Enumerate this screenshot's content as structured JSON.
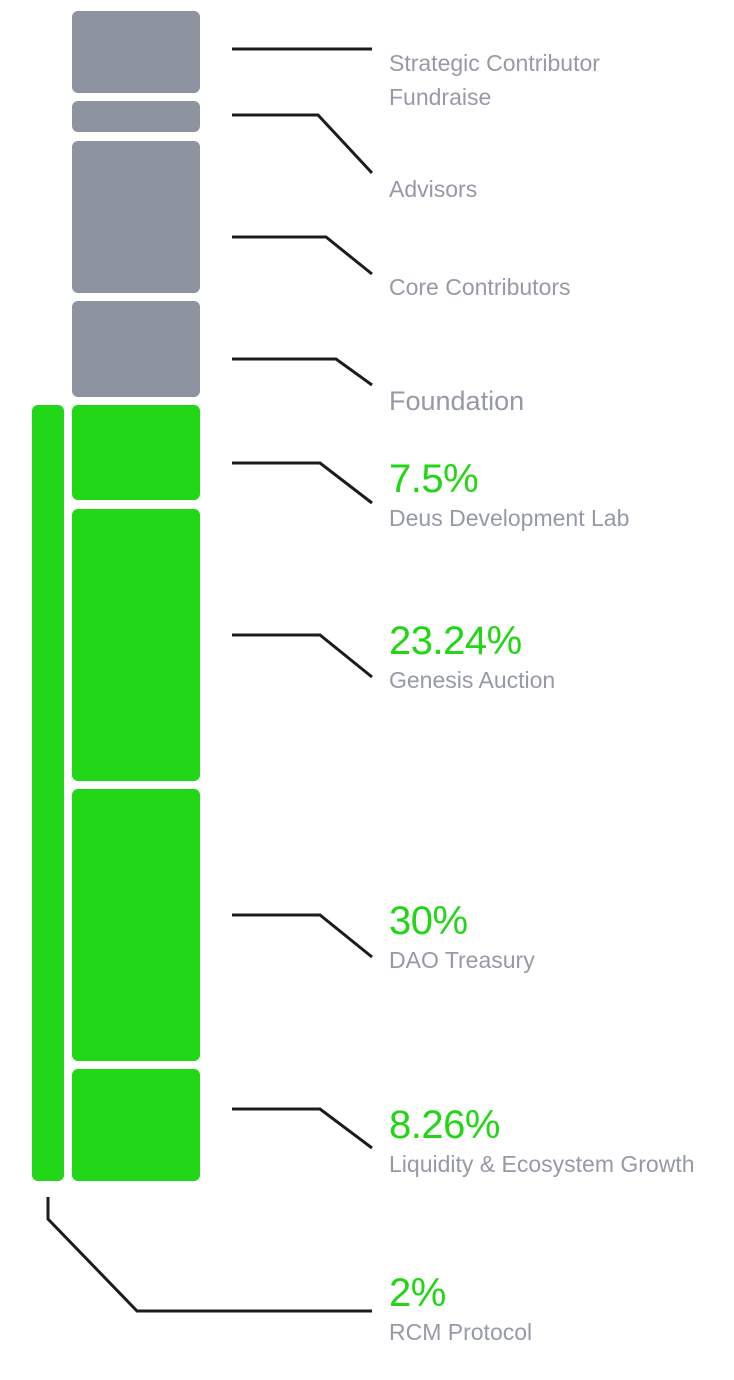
{
  "colors": {
    "locked": "#8e949f",
    "unlocked": "#21d717",
    "leader": "#1c1c1c",
    "label": "#969aa5",
    "percent": "#22d616"
  },
  "chart_data": {
    "type": "bar",
    "orientation": "vertical-stacked",
    "segments": [
      {
        "name": "Strategic Contributor Fundraise",
        "name_lines": [
          "Strategic Contributor",
          "Fundraise"
        ],
        "percent": null,
        "status": "locked"
      },
      {
        "name": "Advisors",
        "name_lines": [
          "Advisors"
        ],
        "percent": null,
        "status": "locked"
      },
      {
        "name": "Core Contributors",
        "name_lines": [
          "Core Contributors"
        ],
        "percent": null,
        "status": "locked"
      },
      {
        "name": "Foundation",
        "name_lines": [
          "Foundation"
        ],
        "percent": null,
        "status": "locked"
      },
      {
        "name": "Deus Development Lab",
        "name_lines": [
          "Deus Development Lab"
        ],
        "percent": "7.5%",
        "percent_value": 7.5,
        "status": "unlocked"
      },
      {
        "name": "Genesis Auction",
        "name_lines": [
          "Genesis Auction"
        ],
        "percent": "23.24%",
        "percent_value": 23.24,
        "status": "unlocked"
      },
      {
        "name": "DAO Treasury",
        "name_lines": [
          "DAO Treasury"
        ],
        "percent": "30%",
        "percent_value": 30,
        "status": "unlocked"
      },
      {
        "name": "Liquidity & Ecosystem Growth",
        "name_lines": [
          "Liquidity & Ecosystem Growth"
        ],
        "percent": "8.26%",
        "percent_value": 8.26,
        "status": "unlocked"
      }
    ],
    "side_bar": {
      "name": "RCM Protocol",
      "percent": "2%",
      "percent_value": 2,
      "status": "unlocked"
    }
  }
}
